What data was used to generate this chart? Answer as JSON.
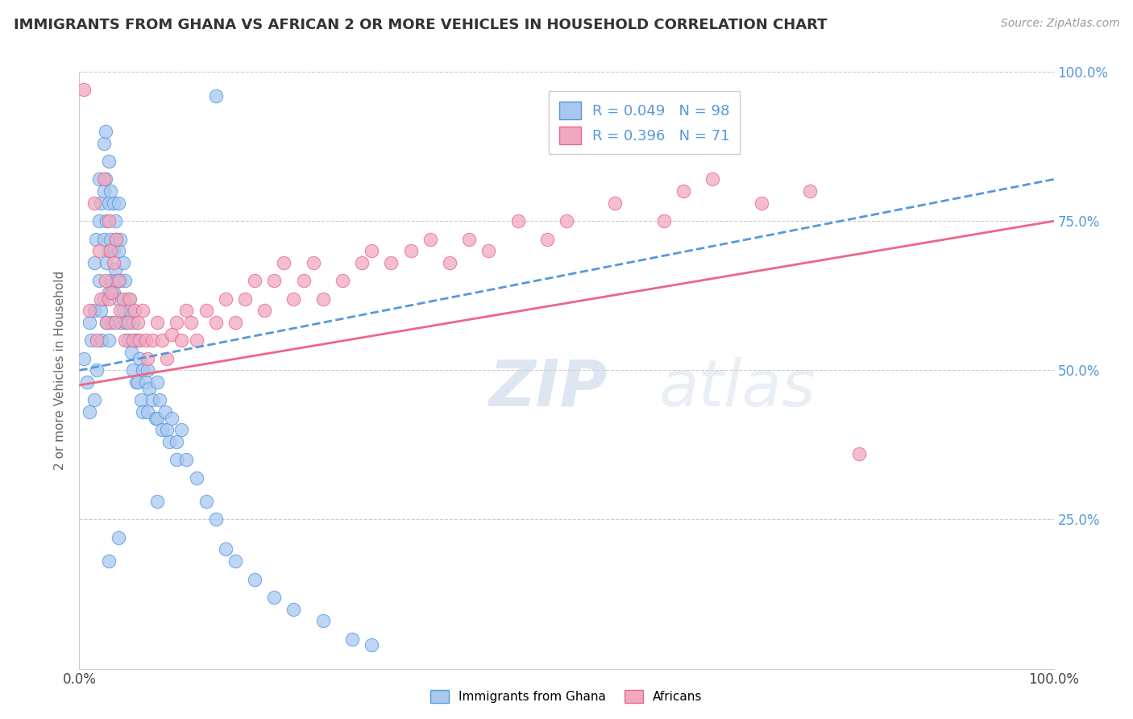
{
  "title": "IMMIGRANTS FROM GHANA VS AFRICAN 2 OR MORE VEHICLES IN HOUSEHOLD CORRELATION CHART",
  "source": "Source: ZipAtlas.com",
  "ylabel": "2 or more Vehicles in Household",
  "xmin": 0.0,
  "xmax": 1.0,
  "ymin": 0.0,
  "ymax": 1.0,
  "blue_color": "#A8C8F0",
  "pink_color": "#F0A8C0",
  "blue_line_color": "#5599DD",
  "pink_line_color": "#EE6688",
  "watermark_zip": "ZIP",
  "watermark_atlas": "atlas",
  "background_color": "#ffffff",
  "grid_color": "#cccccc",
  "blue_scatter_x": [
    0.005,
    0.008,
    0.01,
    0.01,
    0.012,
    0.015,
    0.015,
    0.015,
    0.017,
    0.018,
    0.02,
    0.02,
    0.02,
    0.022,
    0.022,
    0.023,
    0.025,
    0.025,
    0.025,
    0.025,
    0.027,
    0.027,
    0.028,
    0.028,
    0.028,
    0.03,
    0.03,
    0.03,
    0.03,
    0.03,
    0.032,
    0.032,
    0.033,
    0.033,
    0.035,
    0.035,
    0.035,
    0.037,
    0.037,
    0.038,
    0.038,
    0.04,
    0.04,
    0.04,
    0.042,
    0.042,
    0.043,
    0.045,
    0.045,
    0.047,
    0.048,
    0.05,
    0.05,
    0.052,
    0.053,
    0.055,
    0.055,
    0.057,
    0.058,
    0.06,
    0.06,
    0.062,
    0.063,
    0.065,
    0.065,
    0.068,
    0.07,
    0.07,
    0.072,
    0.075,
    0.078,
    0.08,
    0.08,
    0.082,
    0.085,
    0.088,
    0.09,
    0.092,
    0.095,
    0.1,
    0.1,
    0.105,
    0.11,
    0.12,
    0.13,
    0.14,
    0.15,
    0.16,
    0.18,
    0.2,
    0.22,
    0.25,
    0.28,
    0.3,
    0.14,
    0.08,
    0.04,
    0.03
  ],
  "blue_scatter_y": [
    0.52,
    0.48,
    0.58,
    0.43,
    0.55,
    0.68,
    0.6,
    0.45,
    0.72,
    0.5,
    0.82,
    0.75,
    0.65,
    0.78,
    0.6,
    0.55,
    0.88,
    0.8,
    0.72,
    0.62,
    0.9,
    0.82,
    0.75,
    0.68,
    0.58,
    0.85,
    0.78,
    0.7,
    0.63,
    0.55,
    0.8,
    0.72,
    0.65,
    0.58,
    0.78,
    0.7,
    0.63,
    0.75,
    0.67,
    0.72,
    0.65,
    0.78,
    0.7,
    0.62,
    0.72,
    0.65,
    0.58,
    0.68,
    0.6,
    0.65,
    0.58,
    0.62,
    0.55,
    0.6,
    0.53,
    0.58,
    0.5,
    0.55,
    0.48,
    0.55,
    0.48,
    0.52,
    0.45,
    0.5,
    0.43,
    0.48,
    0.5,
    0.43,
    0.47,
    0.45,
    0.42,
    0.48,
    0.42,
    0.45,
    0.4,
    0.43,
    0.4,
    0.38,
    0.42,
    0.38,
    0.35,
    0.4,
    0.35,
    0.32,
    0.28,
    0.25,
    0.2,
    0.18,
    0.15,
    0.12,
    0.1,
    0.08,
    0.05,
    0.04,
    0.96,
    0.28,
    0.22,
    0.18
  ],
  "pink_scatter_x": [
    0.005,
    0.01,
    0.015,
    0.018,
    0.02,
    0.022,
    0.025,
    0.027,
    0.028,
    0.03,
    0.03,
    0.032,
    0.033,
    0.035,
    0.037,
    0.038,
    0.04,
    0.042,
    0.045,
    0.047,
    0.05,
    0.052,
    0.055,
    0.057,
    0.06,
    0.062,
    0.065,
    0.068,
    0.07,
    0.075,
    0.08,
    0.085,
    0.09,
    0.095,
    0.1,
    0.105,
    0.11,
    0.115,
    0.12,
    0.13,
    0.14,
    0.15,
    0.16,
    0.17,
    0.18,
    0.19,
    0.2,
    0.21,
    0.22,
    0.23,
    0.24,
    0.25,
    0.27,
    0.29,
    0.3,
    0.32,
    0.34,
    0.36,
    0.38,
    0.4,
    0.42,
    0.45,
    0.48,
    0.5,
    0.55,
    0.6,
    0.62,
    0.65,
    0.7,
    0.75,
    0.8
  ],
  "pink_scatter_y": [
    0.97,
    0.6,
    0.78,
    0.55,
    0.7,
    0.62,
    0.82,
    0.65,
    0.58,
    0.75,
    0.62,
    0.7,
    0.63,
    0.68,
    0.58,
    0.72,
    0.65,
    0.6,
    0.62,
    0.55,
    0.58,
    0.62,
    0.55,
    0.6,
    0.58,
    0.55,
    0.6,
    0.55,
    0.52,
    0.55,
    0.58,
    0.55,
    0.52,
    0.56,
    0.58,
    0.55,
    0.6,
    0.58,
    0.55,
    0.6,
    0.58,
    0.62,
    0.58,
    0.62,
    0.65,
    0.6,
    0.65,
    0.68,
    0.62,
    0.65,
    0.68,
    0.62,
    0.65,
    0.68,
    0.7,
    0.68,
    0.7,
    0.72,
    0.68,
    0.72,
    0.7,
    0.75,
    0.72,
    0.75,
    0.78,
    0.75,
    0.8,
    0.82,
    0.78,
    0.8,
    0.36
  ]
}
